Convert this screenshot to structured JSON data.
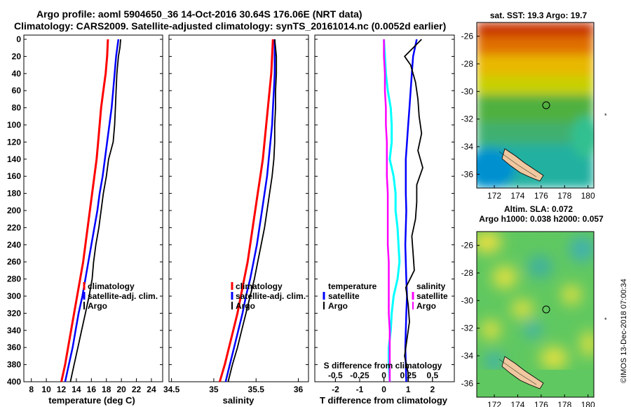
{
  "header": {
    "line1": "Argo profile: aoml 5904650_36 14-Oct-2016 30.64S 176.06E (NRT data)",
    "line2": "Climatology: CARS2009. Satellite-adjusted climatology: synTS_20161014.nc (0.0052d earlier)"
  },
  "colors": {
    "climatology": "#ff0000",
    "satellite": "#0000ff",
    "argo": "#000000",
    "t_diff": "#ff00ff",
    "s_diff": "#00ffff",
    "s_diff_sat": "#0000ff",
    "s_diff_argo": "#000000"
  },
  "chart_data": [
    {
      "type": "line",
      "name": "temperature",
      "xlabel": "temperature (deg C)",
      "xticks": [
        "8",
        "10",
        "12",
        "14",
        "16",
        "18",
        "20",
        "22",
        "24"
      ],
      "xlim": [
        7,
        25.5
      ],
      "ylim": [
        0,
        400
      ],
      "yticks": [
        "0",
        "20",
        "40",
        "60",
        "80",
        "100",
        "120",
        "140",
        "160",
        "180",
        "200",
        "220",
        "240",
        "260",
        "280",
        "300",
        "320",
        "340",
        "360",
        "380",
        "400"
      ],
      "legend": [
        "climatology",
        "satellite-adj. clim.",
        "Argo"
      ],
      "series": [
        {
          "name": "climatology",
          "depth": [
            0,
            20,
            40,
            60,
            80,
            100,
            120,
            140,
            160,
            180,
            200,
            220,
            240,
            260,
            280,
            300,
            320,
            340,
            360,
            380,
            400
          ],
          "values": [
            18.2,
            18.1,
            17.9,
            17.6,
            17.3,
            17.1,
            16.9,
            16.7,
            16.4,
            16.1,
            15.8,
            15.5,
            15.2,
            14.9,
            14.5,
            14.1,
            13.7,
            13.3,
            12.9,
            12.5,
            12.0
          ]
        },
        {
          "name": "satellite-adj. clim.",
          "depth": [
            0,
            20,
            40,
            60,
            80,
            100,
            120,
            140,
            160,
            180,
            200,
            220,
            240,
            260,
            280,
            300,
            320,
            340,
            360,
            380,
            400
          ],
          "values": [
            19.6,
            19.3,
            19.1,
            18.9,
            18.7,
            18.4,
            18.1,
            17.8,
            17.5,
            17.1,
            16.8,
            16.4,
            16.0,
            15.6,
            15.2,
            14.8,
            14.3,
            13.9,
            13.5,
            13.0,
            12.5
          ]
        },
        {
          "name": "Argo",
          "depth": [
            0,
            10,
            20,
            40,
            60,
            80,
            100,
            120,
            140,
            160,
            180,
            200,
            220,
            240,
            260,
            280,
            300,
            320,
            340,
            360,
            380,
            400
          ],
          "values": [
            19.9,
            19.8,
            19.6,
            19.4,
            19.3,
            19.2,
            19.1,
            18.9,
            18.3,
            18.0,
            17.6,
            17.3,
            17.0,
            16.6,
            16.3,
            16.1,
            15.7,
            15.2,
            14.7,
            14.2,
            13.7,
            13.2
          ]
        }
      ]
    },
    {
      "type": "line",
      "name": "salinity",
      "xlabel": "salinity",
      "xticks": [
        "34.5",
        "35",
        "35.5",
        "36"
      ],
      "xlim": [
        34.47,
        36.12
      ],
      "ylim": [
        0,
        400
      ],
      "legend": [
        "climatology",
        "satellite-adj. clim.",
        "Argo"
      ],
      "series": [
        {
          "name": "climatology",
          "depth": [
            0,
            20,
            40,
            60,
            80,
            100,
            120,
            140,
            160,
            180,
            200,
            220,
            240,
            260,
            280,
            300,
            320,
            340,
            360,
            380,
            400
          ],
          "values": [
            35.7,
            35.69,
            35.68,
            35.66,
            35.64,
            35.62,
            35.6,
            35.58,
            35.55,
            35.52,
            35.49,
            35.46,
            35.43,
            35.4,
            35.36,
            35.32,
            35.28,
            35.23,
            35.18,
            35.13,
            35.07
          ]
        },
        {
          "name": "satellite-adj. clim.",
          "depth": [
            0,
            20,
            40,
            60,
            80,
            100,
            120,
            140,
            160,
            180,
            200,
            220,
            240,
            260,
            280,
            300,
            320,
            340,
            360,
            380,
            400
          ],
          "values": [
            35.72,
            35.72,
            35.72,
            35.71,
            35.7,
            35.69,
            35.67,
            35.65,
            35.63,
            35.6,
            35.57,
            35.54,
            35.51,
            35.47,
            35.43,
            35.38,
            35.34,
            35.29,
            35.24,
            35.19,
            35.14
          ]
        },
        {
          "name": "Argo",
          "depth": [
            0,
            10,
            20,
            40,
            60,
            80,
            100,
            120,
            140,
            160,
            180,
            200,
            220,
            240,
            260,
            280,
            300,
            320,
            340,
            360,
            380,
            400
          ],
          "values": [
            35.72,
            35.73,
            35.74,
            35.74,
            35.73,
            35.73,
            35.72,
            35.72,
            35.71,
            35.69,
            35.66,
            35.63,
            35.6,
            35.56,
            35.52,
            35.48,
            35.43,
            35.38,
            35.33,
            35.28,
            35.22,
            35.17
          ]
        }
      ]
    },
    {
      "type": "line",
      "name": "differences",
      "xlabel": "T difference from climatology",
      "xticks": [
        "-2",
        "-1",
        "0",
        "1",
        "2"
      ],
      "xlim": [
        -2.85,
        2.9
      ],
      "s_label": "S difference from climatology",
      "s_ticks": [
        "-0.5",
        "-0.25",
        "0",
        "0.25",
        "0.5"
      ],
      "s_lim": [
        -0.712,
        0.725
      ],
      "ylim": [
        0,
        400
      ],
      "legend_t": [
        "temperature",
        "satellite",
        "Argo"
      ],
      "legend_s": [
        "salinity",
        "satellite",
        "Argo"
      ],
      "series": [
        {
          "name": "T satellite",
          "axis": "T",
          "depth": [
            0,
            20,
            40,
            60,
            80,
            100,
            120,
            140,
            160,
            180,
            200,
            220,
            240,
            260,
            280,
            300,
            320,
            340,
            360,
            380,
            400
          ],
          "values": [
            1.35,
            1.2,
            1.15,
            1.1,
            1.05,
            1.0,
            0.95,
            0.9,
            0.9,
            0.9,
            0.92,
            0.9,
            0.88,
            0.9,
            0.92,
            0.95,
            0.92,
            0.9,
            0.88,
            0.9,
            0.92
          ]
        },
        {
          "name": "T Argo",
          "axis": "T",
          "depth": [
            0,
            10,
            20,
            30,
            50,
            70,
            90,
            110,
            130,
            150,
            170,
            190,
            210,
            230,
            250,
            270,
            290,
            310,
            330,
            350,
            370,
            390,
            400
          ],
          "values": [
            1.55,
            1.2,
            0.85,
            1.1,
            1.3,
            1.4,
            1.45,
            1.55,
            1.4,
            1.6,
            1.35,
            1.35,
            1.3,
            1.15,
            1.2,
            1.25,
            0.9,
            1.0,
            1.05,
            0.95,
            0.85,
            1.0,
            1.0
          ]
        },
        {
          "name": "S diff",
          "axis": "S",
          "depth": [
            0,
            20,
            40,
            60,
            80,
            100,
            120,
            140,
            160,
            180,
            200,
            220,
            240,
            260,
            280,
            300,
            320,
            340,
            360,
            380,
            400
          ],
          "values": [
            0.0,
            0.01,
            0.02,
            0.04,
            0.07,
            0.08,
            0.08,
            0.06,
            0.1,
            0.12,
            0.12,
            0.14,
            0.15,
            0.16,
            0.14,
            0.1,
            0.08,
            0.07,
            0.05,
            0.05,
            0.06
          ]
        },
        {
          "name": "S satellite",
          "axis": "S",
          "depth": [
            0,
            20,
            40,
            60,
            80,
            100,
            120,
            140,
            160,
            180,
            200,
            220,
            240,
            260,
            280,
            300,
            320,
            340,
            360,
            380,
            400
          ],
          "values": [
            0.0,
            0.0,
            0.01,
            0.01,
            0.02,
            0.02,
            0.03,
            0.03,
            0.03,
            0.04,
            0.04,
            0.04,
            0.04,
            0.05,
            0.05,
            0.05,
            0.05,
            0.06,
            0.06,
            0.06,
            0.06
          ]
        }
      ]
    }
  ],
  "maps": {
    "sst_title": "sat. SST: 19.3 Argo: 19.7",
    "sla_title1": "Altim. SLA: 0.072",
    "sla_title2": "Argo h1000: 0.038 h2000: 0.057",
    "yticks": [
      "-26",
      "-28",
      "-30",
      "-32",
      "-34",
      "-36"
    ],
    "xticks": [
      "172",
      "174",
      "176",
      "178",
      "180"
    ],
    "profile_marker": {
      "lon": 176.06,
      "lat": -30.64
    }
  },
  "credit": "©IMOS 13-Dec-2018 07:00:34"
}
